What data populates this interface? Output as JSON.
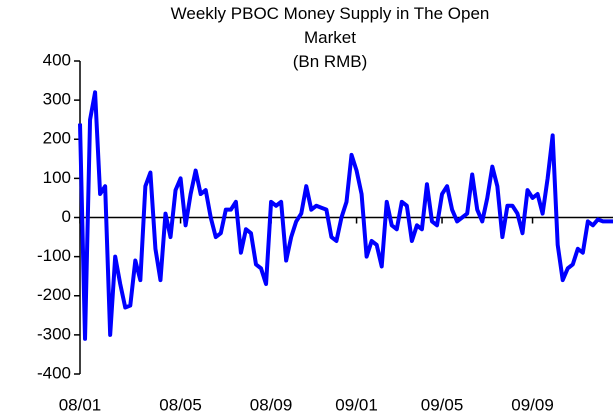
{
  "chart_data": {
    "type": "line",
    "title": "Weekly PBOC Money Supply in The Open Market",
    "subtitle": "(Bn RMB)",
    "categories": [
      "08/01",
      null,
      null,
      null,
      null,
      null,
      null,
      null,
      null,
      null,
      null,
      null,
      null,
      null,
      null,
      null,
      null,
      null,
      null,
      null,
      "08/05",
      null,
      null,
      null,
      null,
      null,
      null,
      null,
      null,
      null,
      null,
      null,
      null,
      null,
      null,
      null,
      null,
      null,
      "08/09",
      null,
      null,
      null,
      null,
      null,
      null,
      null,
      null,
      null,
      null,
      null,
      null,
      null,
      null,
      null,
      null,
      "09/01",
      null,
      null,
      null,
      null,
      null,
      null,
      null,
      null,
      null,
      null,
      null,
      null,
      null,
      null,
      null,
      null,
      "09/05",
      null,
      null,
      null,
      null,
      null,
      null,
      null,
      null,
      null,
      null,
      null,
      null,
      null,
      null,
      null,
      null,
      null,
      "09/09",
      null,
      null,
      null,
      null,
      null,
      null,
      null,
      null,
      null,
      null,
      null,
      null,
      null,
      null,
      null,
      null
    ],
    "series": [
      {
        "name": "Money Supply",
        "color": "#0000ff",
        "values": [
          240,
          -310,
          250,
          320,
          60,
          80,
          -300,
          -100,
          -170,
          -230,
          -225,
          -110,
          -160,
          80,
          115,
          -80,
          -160,
          10,
          -50,
          70,
          100,
          -20,
          60,
          120,
          60,
          70,
          0,
          -50,
          -40,
          20,
          20,
          40,
          -90,
          -30,
          -40,
          -120,
          -130,
          -170,
          40,
          30,
          40,
          -110,
          -50,
          -10,
          10,
          80,
          20,
          30,
          25,
          20,
          -50,
          -60,
          0,
          40,
          160,
          120,
          60,
          -100,
          -60,
          -70,
          -125,
          40,
          -20,
          -30,
          40,
          30,
          -60,
          -20,
          -30,
          85,
          -10,
          -20,
          60,
          80,
          20,
          -10,
          0,
          10,
          110,
          20,
          -10,
          50,
          130,
          80,
          -50,
          30,
          30,
          10,
          -40,
          70,
          50,
          60,
          10,
          100,
          210,
          -70,
          -160,
          -130,
          -120,
          -80,
          -90,
          -10,
          -20,
          -5,
          -10,
          -10,
          -10
        ]
      }
    ],
    "ylim": [
      -400,
      400
    ],
    "yticks": [
      -400,
      -300,
      -200,
      -100,
      0,
      100,
      200,
      300,
      400
    ],
    "grid": false
  }
}
